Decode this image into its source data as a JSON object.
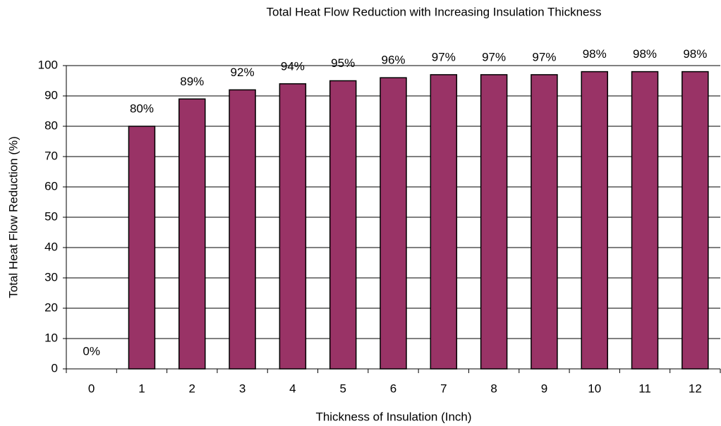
{
  "chart_data": {
    "type": "bar",
    "title": "Total Heat Flow Reduction with Increasing Insulation Thickness",
    "x_label": "Thickness of Insulation (Inch)",
    "y_label": "Total Heat Flow Reduction (%)",
    "categories": [
      "0",
      "1",
      "2",
      "3",
      "4",
      "5",
      "6",
      "7",
      "8",
      "9",
      "10",
      "11",
      "12"
    ],
    "values": [
      0,
      80,
      89,
      92,
      94,
      95,
      96,
      97,
      97,
      97,
      98,
      98,
      98
    ],
    "value_labels": [
      "0%",
      "80%",
      "89%",
      "92%",
      "94%",
      "95%",
      "96%",
      "97%",
      "97%",
      "97%",
      "98%",
      "98%",
      "98%"
    ],
    "color": "#993366",
    "ylim": [
      0,
      100
    ],
    "yticks": [
      0,
      10,
      20,
      30,
      40,
      50,
      60,
      70,
      80,
      90,
      100
    ],
    "grid": true
  }
}
